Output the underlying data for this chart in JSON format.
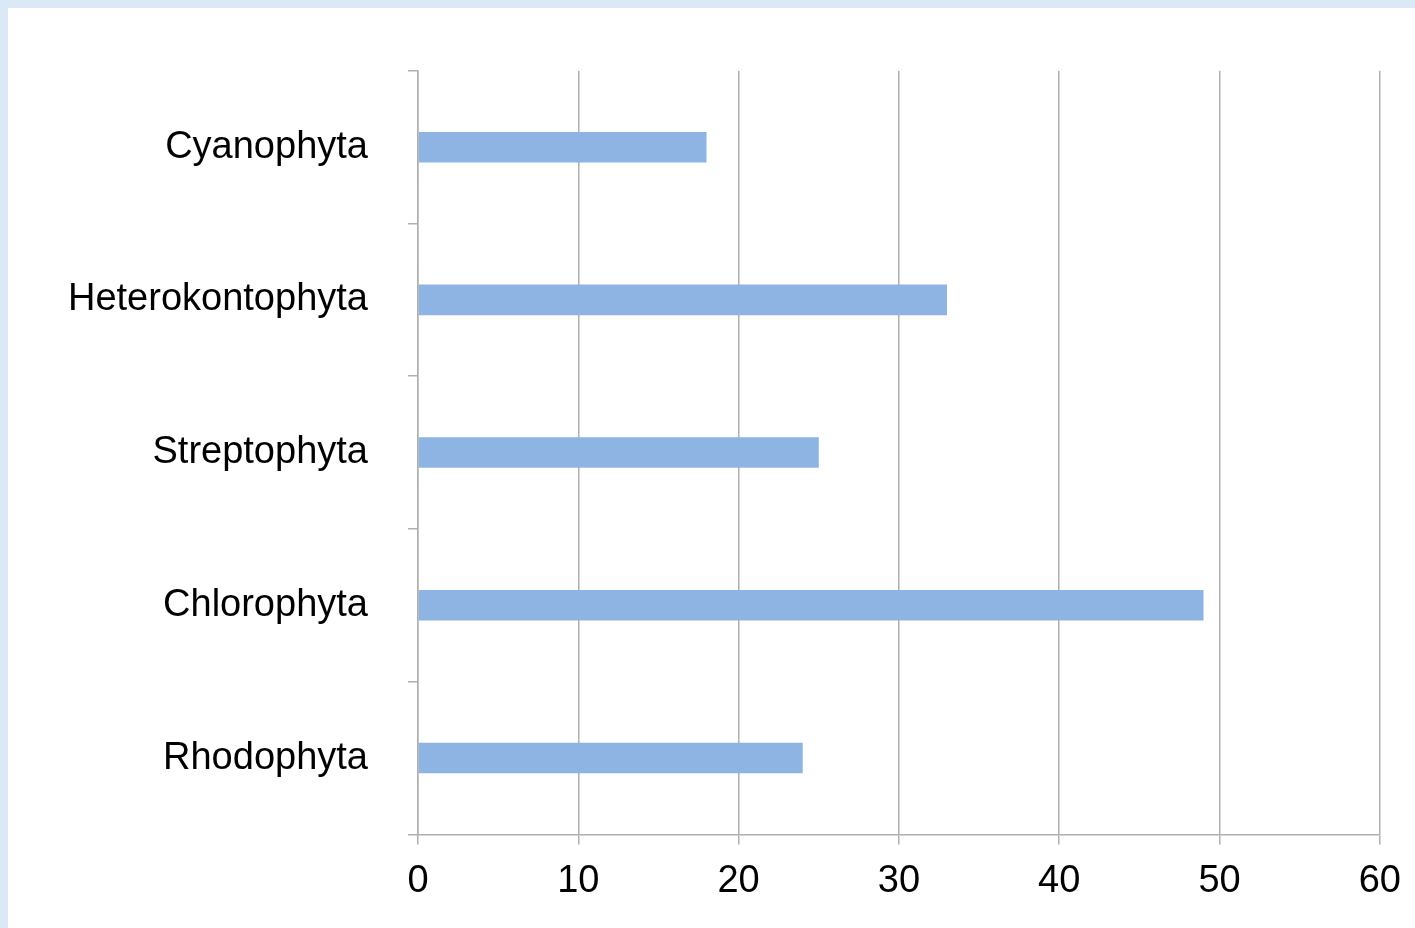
{
  "chart_data": {
    "type": "bar",
    "orientation": "horizontal",
    "categories": [
      "Cyanophyta",
      "Heterokontophyta",
      "Streptophyta",
      "Chlorophyta",
      "Rhodophyta"
    ],
    "values": [
      18,
      33,
      25,
      49,
      24
    ],
    "color": "#8db4e2",
    "xlim": [
      0,
      60
    ],
    "xticks": [
      0,
      10,
      20,
      30,
      40,
      50,
      60
    ],
    "grid": "x",
    "legend": false
  }
}
